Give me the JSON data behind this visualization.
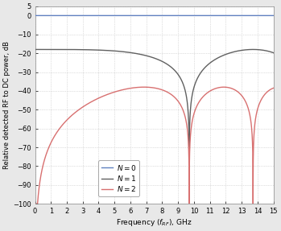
{
  "title": "",
  "xlabel": "Frequency ($f_{RF}$), GHz",
  "ylabel": "Relative detected RF to DC power, dB",
  "xlim": [
    0,
    15
  ],
  "ylim": [
    -100,
    5
  ],
  "yticks": [
    5,
    0,
    -10,
    -20,
    -30,
    -40,
    -50,
    -60,
    -70,
    -80,
    -90,
    -100
  ],
  "xticks": [
    0,
    1,
    2,
    3,
    4,
    5,
    6,
    7,
    8,
    9,
    10,
    11,
    12,
    13,
    14,
    15
  ],
  "color_N0": "#6080c0",
  "color_N1": "#606060",
  "color_N2": "#d87070",
  "legend_labels": [
    "$N = 0$",
    "$N = 1$",
    "$N = 2$"
  ],
  "legend_loc": "lower left",
  "grid_color": "#c0c0c0",
  "background_color": "#f5f5f5",
  "A1_dB": -18.0,
  "A2_dB": -38.0,
  "phi_null_N1": 1.5707963267948966,
  "f_null_N1_GHz": 9.7,
  "lw": 1.0
}
